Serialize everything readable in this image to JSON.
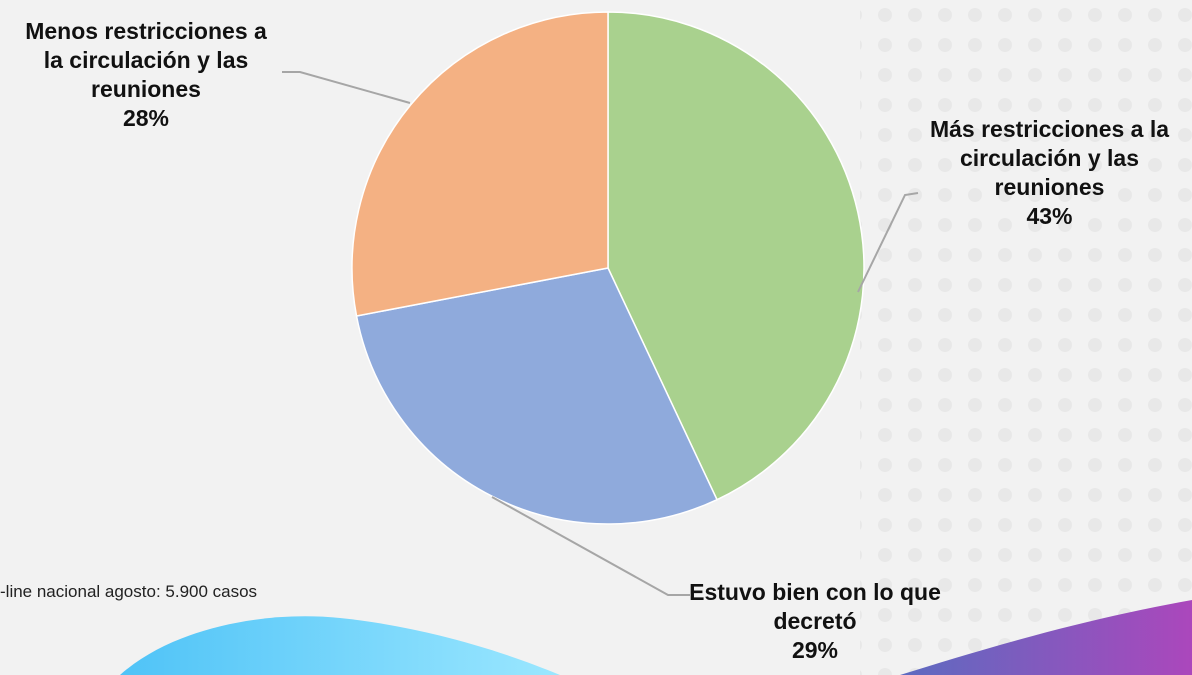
{
  "chart_data": {
    "type": "pie",
    "categories": [
      "Más restricciones a la circulación y las reuniones",
      "Estuvo bien con lo que decretó",
      "Menos restricciones a la circulación y las reuniones"
    ],
    "values": [
      43,
      29,
      28
    ],
    "value_labels": [
      "43%",
      "29%",
      "28%"
    ],
    "colors": [
      "#a9d18e",
      "#8faadc",
      "#f4b183"
    ],
    "note": "-line nacional agosto: 5.900 casos"
  }
}
